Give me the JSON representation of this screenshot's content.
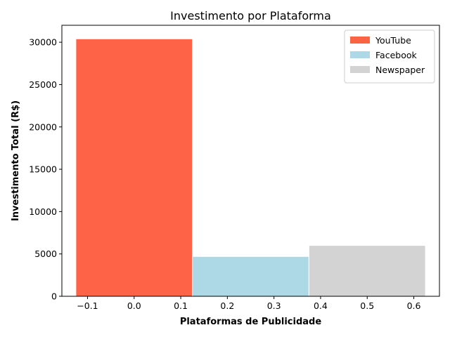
{
  "chart_data": {
    "type": "bar",
    "title": "Investimento por Plataforma",
    "xlabel": "Plataformas de Publicidade",
    "ylabel": "Investimento Total (R$)",
    "xlim": [
      -0.155,
      0.655
    ],
    "ylim": [
      0,
      32000
    ],
    "bar_width": 0.25,
    "series": [
      {
        "name": "YouTube",
        "x": 0.0,
        "value": 30400,
        "color": "#ff6347"
      },
      {
        "name": "Facebook",
        "x": 0.25,
        "value": 4700,
        "color": "#add8e6"
      },
      {
        "name": "Newspaper",
        "x": 0.5,
        "value": 6000,
        "color": "#d3d3d3"
      }
    ],
    "x_ticks": [
      -0.1,
      0.0,
      0.1,
      0.2,
      0.3,
      0.4,
      0.5,
      0.6
    ],
    "x_tick_labels": [
      "−0.1",
      "0.0",
      "0.1",
      "0.2",
      "0.3",
      "0.4",
      "0.5",
      "0.6"
    ],
    "y_ticks": [
      0,
      5000,
      10000,
      15000,
      20000,
      25000,
      30000
    ],
    "y_tick_labels": [
      "0",
      "5000",
      "10000",
      "15000",
      "20000",
      "25000",
      "30000"
    ],
    "grid": false,
    "legend_position": "top-right"
  }
}
